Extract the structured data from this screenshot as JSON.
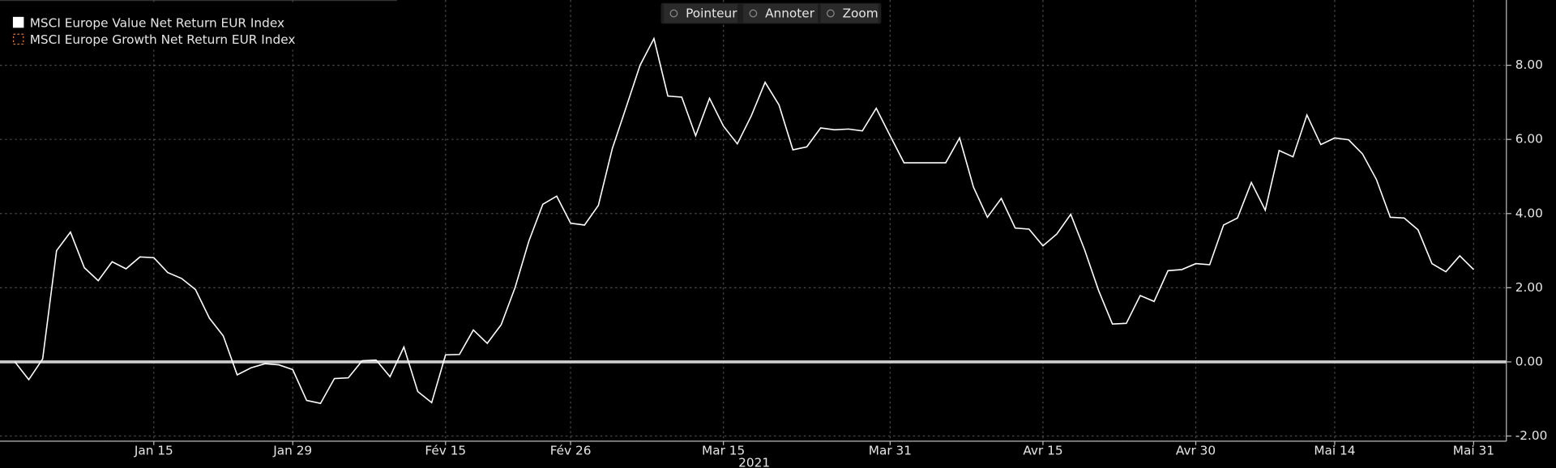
{
  "chart_data": {
    "type": "line",
    "series": [
      {
        "name": "MSCI Europe Value Net Return EUR Index",
        "color": "#ffffff",
        "values": [
          0,
          -0.48,
          0.08,
          3.0,
          3.5,
          2.54,
          2.19,
          2.7,
          2.51,
          2.83,
          2.81,
          2.41,
          2.25,
          1.95,
          1.18,
          0.7,
          -0.35,
          -0.16,
          -0.05,
          -0.08,
          -0.21,
          -1.04,
          -1.12,
          -0.45,
          -0.43,
          0.03,
          0.05,
          -0.4,
          0.4,
          -0.8,
          -1.1,
          0.19,
          0.2,
          0.86,
          0.5,
          1.0,
          2.0,
          3.26,
          4.25,
          4.47,
          3.74,
          3.69,
          4.22,
          5.75,
          6.87,
          8.0,
          8.72,
          7.17,
          7.14,
          6.1,
          7.11,
          6.36,
          5.88,
          6.63,
          7.54,
          6.93,
          5.72,
          5.8,
          6.31,
          6.26,
          6.28,
          6.23,
          6.84,
          6.1,
          5.37,
          5.37,
          5.37,
          5.37,
          6.04,
          4.71,
          3.9,
          4.41,
          3.61,
          3.58,
          3.13,
          3.45,
          3.98,
          3.02,
          1.93,
          1.02,
          1.04,
          1.79,
          1.63,
          2.46,
          2.49,
          2.65,
          2.62,
          3.69,
          3.88,
          4.84,
          4.09,
          5.7,
          5.53,
          6.66,
          5.86,
          6.04,
          5.99,
          5.61,
          4.92,
          3.9,
          3.88,
          3.56,
          2.65,
          2.43,
          2.86,
          2.49
        ]
      },
      {
        "name": "MSCI Europe Growth Net Return EUR Index",
        "color": "#e07b28",
        "visible": false
      }
    ],
    "categories": [
      null,
      null,
      null,
      null,
      null,
      null,
      null,
      null,
      null,
      null,
      "Jan 15",
      null,
      null,
      null,
      null,
      null,
      null,
      null,
      null,
      null,
      "Jan 29",
      null,
      null,
      null,
      null,
      null,
      null,
      null,
      null,
      null,
      null,
      "Fév 15",
      null,
      null,
      null,
      null,
      null,
      null,
      null,
      null,
      "Fév 26",
      null,
      null,
      null,
      null,
      null,
      null,
      null,
      null,
      null,
      null,
      "Mar 15",
      null,
      null,
      null,
      null,
      null,
      null,
      null,
      null,
      null,
      null,
      null,
      "Mar 31",
      null,
      null,
      null,
      null,
      null,
      null,
      null,
      null,
      null,
      null,
      "Avr 15",
      null,
      null,
      null,
      null,
      null,
      null,
      null,
      null,
      null,
      null,
      "Avr 30",
      null,
      null,
      null,
      null,
      null,
      null,
      null,
      null,
      null,
      "Mai 14",
      null,
      null,
      null,
      null,
      null,
      null,
      null,
      null,
      null,
      "Mai 31"
    ],
    "x_axis_year": "2021",
    "ylim": [
      -2.14,
      9.76
    ],
    "yticks": [
      {
        "value": -2,
        "label": "-2.00"
      },
      {
        "value": 0,
        "label": "0.00"
      },
      {
        "value": 2,
        "label": "2.00"
      },
      {
        "value": 4,
        "label": "4.00"
      },
      {
        "value": 6,
        "label": "6.00"
      },
      {
        "value": 8,
        "label": "8.00"
      }
    ],
    "grid": true
  },
  "toolbar": [
    "Pointeur",
    "Annoter",
    "Zoom"
  ]
}
